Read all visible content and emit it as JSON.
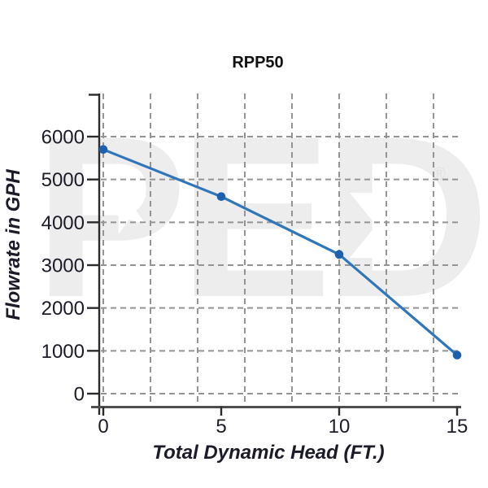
{
  "chart_data": {
    "type": "line",
    "title": "RPP50",
    "xlabel": "Total Dynamic Head (FT.)",
    "ylabel": "Flowrate in GPH",
    "x": [
      0,
      5,
      10,
      15
    ],
    "series": [
      {
        "name": "RPP50",
        "values": [
          5700,
          4600,
          3250,
          900
        ]
      }
    ],
    "xlim": [
      0,
      15
    ],
    "ylim": [
      0,
      6000
    ],
    "x_ticks": [
      0,
      5,
      10,
      15
    ],
    "y_ticks": [
      0,
      1000,
      2000,
      3000,
      4000,
      5000,
      6000
    ],
    "x_grid_step": 2,
    "grid": "dashed",
    "legend_position": "none",
    "colors": {
      "line": "#3076BA",
      "marker": "#1E60AB",
      "grid": "#949494",
      "axis": "#2b2b2b",
      "x_axis_line": "#4f4f4f",
      "tick_text": "#1c1c28"
    }
  },
  "watermark": {
    "text": "PED",
    "registered": "®",
    "star_icon": "star",
    "arrow_icon": "arrow-right"
  }
}
